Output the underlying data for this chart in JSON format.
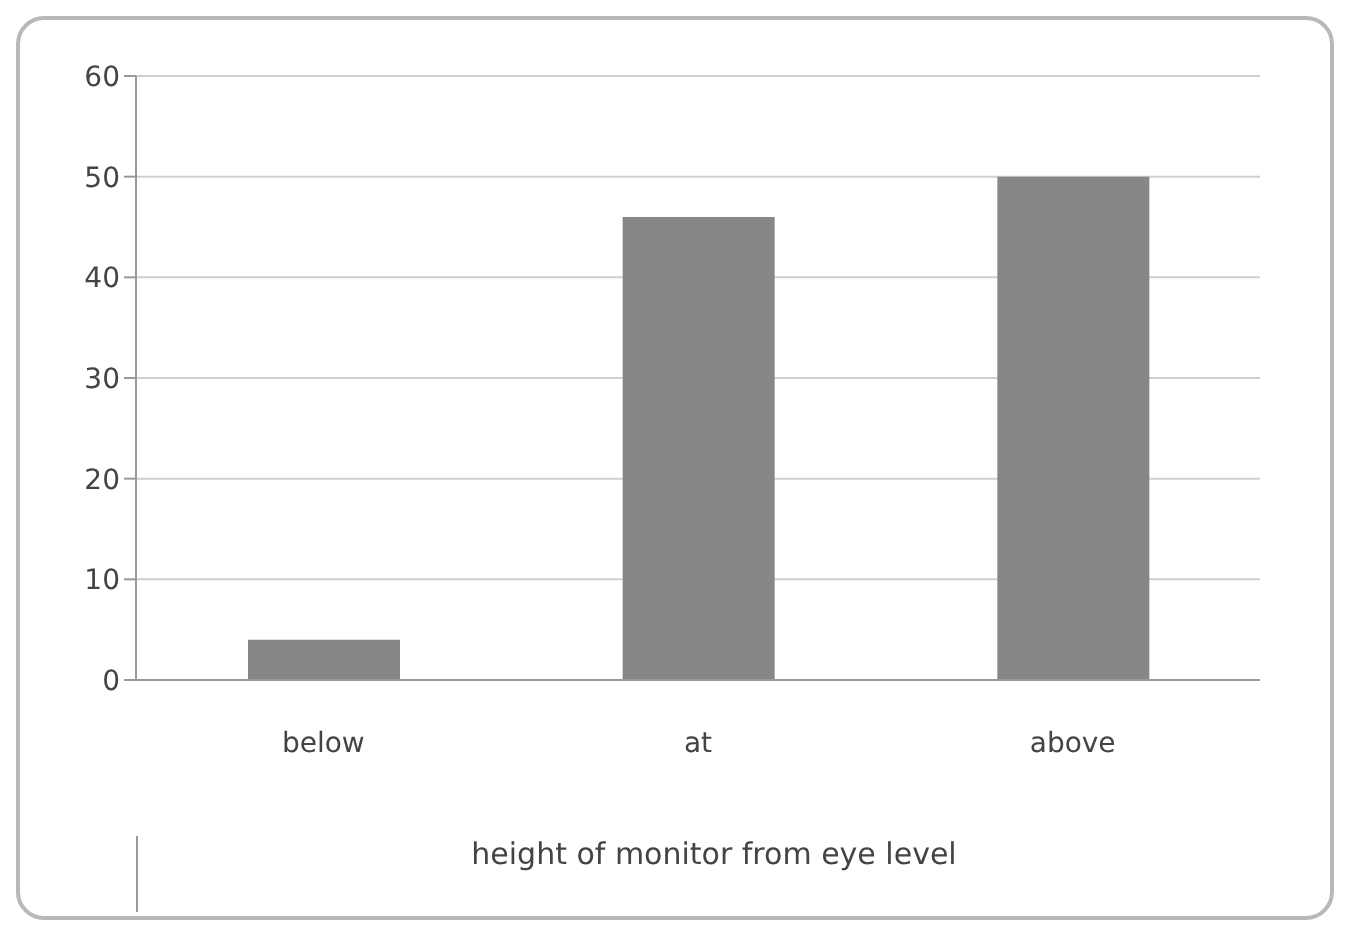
{
  "chart_data": {
    "type": "bar",
    "xlabel": "height of monitor from eye level",
    "categories": [
      "below",
      "at",
      "above"
    ],
    "values": [
      4,
      46,
      50
    ],
    "color": "#878787",
    "ylim": [
      0,
      60
    ],
    "yticks": [
      0,
      10,
      20,
      30,
      40,
      50,
      60
    ],
    "grid": "y"
  }
}
